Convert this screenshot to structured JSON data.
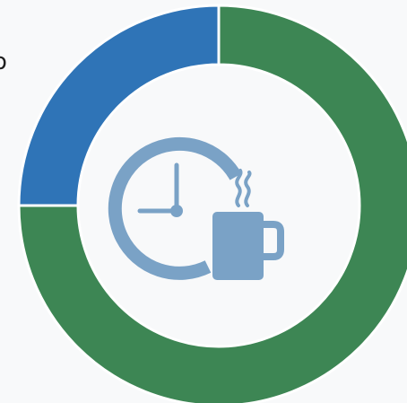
{
  "chart_data": {
    "type": "pie",
    "variant": "donut",
    "categories": [
      "",
      ""
    ],
    "values": [
      75,
      25
    ],
    "colors": [
      "#3d8654",
      "#2f74b7"
    ],
    "start_angle_deg": 0,
    "direction": "clockwise",
    "center_icon": "clock-and-coffee-mug-icon",
    "center_icon_color": "#7aa2c6",
    "separator_color": "#ffffff",
    "cropped_label_fragment": "o"
  }
}
